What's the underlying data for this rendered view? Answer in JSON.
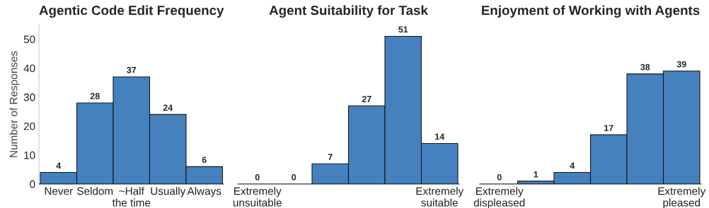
{
  "chart_data": [
    {
      "type": "bar",
      "title": "Agentic Code Edit Frequency",
      "ylabel": "Number of Responses",
      "categories": [
        "Never",
        "Seldom",
        "~Half\nthe time",
        "Usually",
        "Always"
      ],
      "values": [
        4,
        28,
        37,
        24,
        6
      ],
      "color": "#4580bf",
      "ylim": [
        0,
        55
      ],
      "yticks": [
        0,
        10,
        20,
        30,
        40,
        50
      ],
      "data_labels": true,
      "grid": false,
      "legend": false
    },
    {
      "type": "bar",
      "title": "Agent Suitability for Task",
      "categories": [
        "Extremely\nunsuitable",
        null,
        null,
        null,
        null,
        "Extremely\nsuitable"
      ],
      "values": [
        0,
        0,
        7,
        27,
        51,
        14
      ],
      "color": "#4580bf",
      "tick_labels": "x",
      "data_labels": true,
      "grid": false,
      "legend": false
    },
    {
      "type": "bar",
      "title": "Enjoyment of Working with Agents",
      "categories": [
        "Extremely\ndispleased",
        null,
        null,
        null,
        null,
        "Extremely\npleased"
      ],
      "values": [
        0,
        1,
        4,
        17,
        38,
        39
      ],
      "color": "#4580bf",
      "tick_labels": "x",
      "data_labels": true,
      "grid": false,
      "legend": false
    }
  ]
}
